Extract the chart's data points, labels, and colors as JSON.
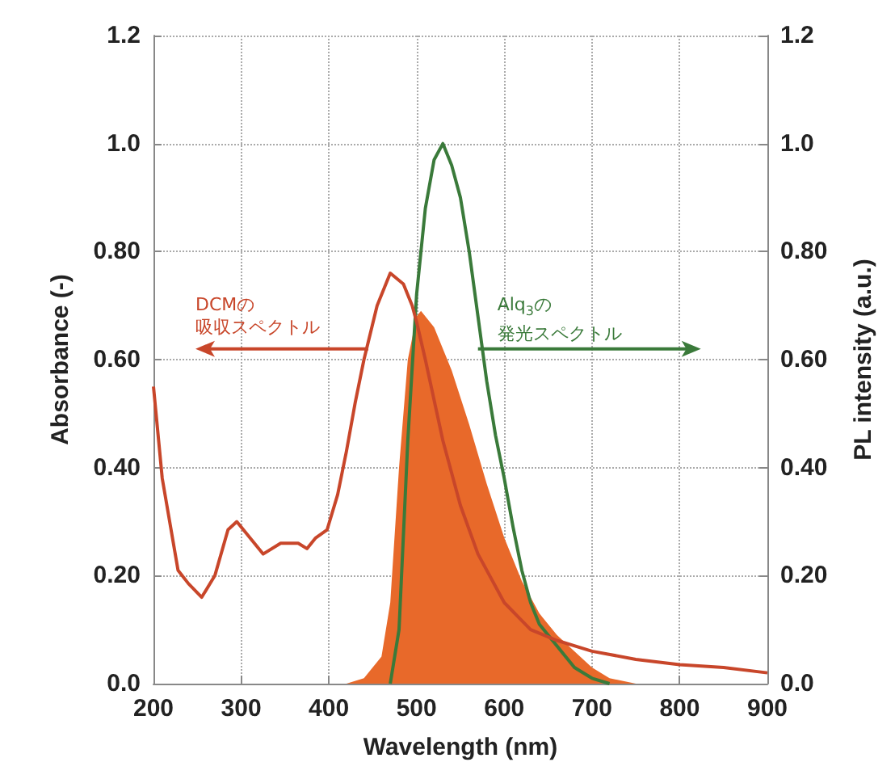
{
  "chart_data": {
    "type": "line",
    "xlabel": "Wavelength (nm)",
    "ylabel": "Absorbance (-)",
    "y2label": "PL intensity (a.u.)",
    "xlim": [
      200,
      900
    ],
    "xticks": [
      200,
      300,
      400,
      500,
      600,
      700,
      800,
      900
    ],
    "ylim": [
      0,
      1.2
    ],
    "yticks": [
      {
        "value": 0,
        "label": "0.0"
      },
      {
        "value": 0.2,
        "label": "0.20"
      },
      {
        "value": 0.4,
        "label": "0.40"
      },
      {
        "value": 0.6,
        "label": "0.60"
      },
      {
        "value": 0.8,
        "label": "0.80"
      },
      {
        "value": 1,
        "label": "1.0"
      },
      1.2
    ],
    "y2lim": [
      0,
      1.2
    ],
    "y2ticks": [
      {
        "value": 0,
        "label": "0.0"
      },
      {
        "value": 0.2,
        "label": "0.20"
      },
      {
        "value": 0.4,
        "label": "0.40"
      },
      {
        "value": 0.6,
        "label": "0.60"
      },
      {
        "value": 0.8,
        "label": "0.80"
      },
      {
        "value": 1,
        "label": "1.0"
      },
      1.2
    ],
    "grid": true,
    "marker": "none",
    "series": [
      {
        "type": "area",
        "axis": "y2",
        "color": "#e8692a",
        "x": [
          420,
          440,
          460,
          470,
          480,
          490,
          500,
          505,
          520,
          540,
          560,
          580,
          600,
          620,
          640,
          660,
          680,
          700,
          720,
          750
        ],
        "values": [
          0,
          0.01,
          0.05,
          0.15,
          0.4,
          0.6,
          0.68,
          0.69,
          0.66,
          0.58,
          0.48,
          0.37,
          0.27,
          0.19,
          0.13,
          0.09,
          0.06,
          0.03,
          0.01,
          0
        ]
      },
      {
        "type": "line",
        "axis": "y2",
        "color": "#3a7a3a",
        "x": [
          470,
          480,
          490,
          500,
          510,
          520,
          530,
          540,
          550,
          560,
          570,
          580,
          590,
          600,
          610,
          620,
          630,
          640,
          660,
          680,
          700,
          720
        ],
        "values": [
          0,
          0.1,
          0.45,
          0.72,
          0.88,
          0.97,
          1.0,
          0.96,
          0.9,
          0.8,
          0.68,
          0.56,
          0.46,
          0.38,
          0.29,
          0.21,
          0.15,
          0.11,
          0.07,
          0.03,
          0.01,
          0
        ]
      },
      {
        "color": "#c8462a",
        "x": [
          200,
          210,
          228,
          240,
          255,
          270,
          285,
          295,
          310,
          325,
          345,
          365,
          375,
          385,
          398,
          410,
          420,
          430,
          440,
          455,
          470,
          485,
          495,
          500,
          510,
          530,
          550,
          570,
          600,
          630,
          660,
          700,
          750,
          800,
          850,
          900
        ],
        "values": [
          0.55,
          0.38,
          0.21,
          0.185,
          0.16,
          0.2,
          0.285,
          0.3,
          0.27,
          0.24,
          0.26,
          0.26,
          0.25,
          0.27,
          0.285,
          0.35,
          0.43,
          0.52,
          0.6,
          0.7,
          0.76,
          0.74,
          0.7,
          0.67,
          0.6,
          0.45,
          0.33,
          0.24,
          0.15,
          0.1,
          0.08,
          0.06,
          0.045,
          0.035,
          0.03,
          0.02
        ]
      }
    ],
    "annotations": [
      {
        "text": "DCMの吸収スペクトル",
        "x": 445,
        "y": 0.62
      },
      {
        "text": "Alq$_{3}$の発光スペクトル",
        "x": 570,
        "y": 0.62
      }
    ]
  }
}
